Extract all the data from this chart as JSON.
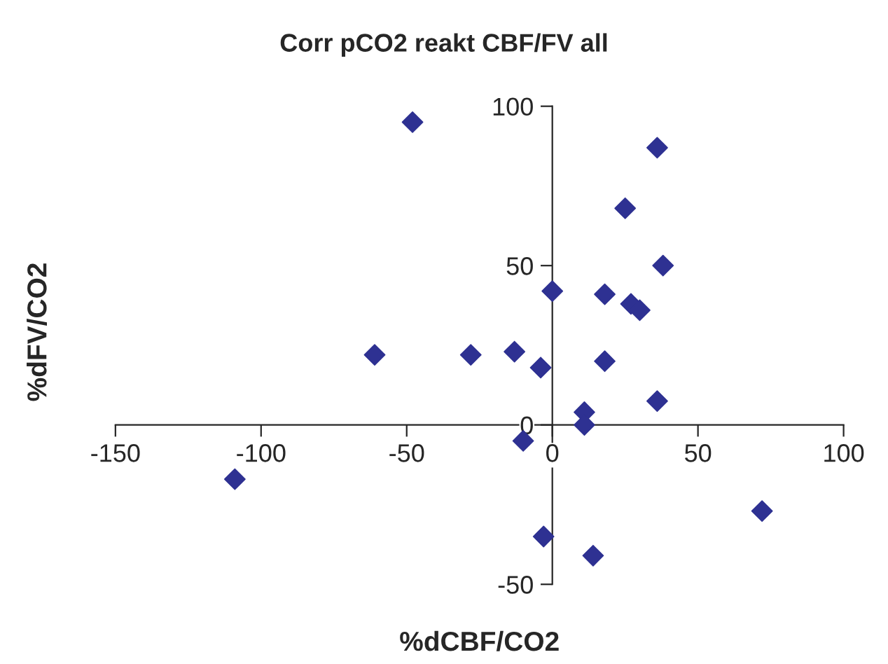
{
  "chart_data": {
    "type": "scatter",
    "title": "Corr pCO2 reakt CBF/FV all",
    "xlabel": "%dCBF/CO2",
    "ylabel": "%dFV/CO2",
    "x": [
      -48,
      0,
      -61,
      -28,
      -13,
      -4,
      -10,
      -109,
      36,
      25,
      38,
      18,
      27,
      30,
      18,
      36,
      11,
      11,
      72,
      -3,
      14
    ],
    "series": [
      {
        "color": "#2e3192",
        "values": [
          95,
          42,
          22,
          22,
          23,
          18,
          -5,
          -17,
          87,
          68,
          50,
          41,
          38,
          36,
          20,
          7.5,
          4,
          0,
          -27,
          -35,
          -41
        ]
      }
    ],
    "xlim": [
      -150,
      100
    ],
    "xticks": [
      -150,
      -100,
      -50,
      0,
      50,
      100
    ],
    "ylim": [
      -50,
      100
    ],
    "yticks": [
      -50,
      0,
      50,
      100
    ],
    "marker": "diamond",
    "grid": false,
    "legend": false
  }
}
